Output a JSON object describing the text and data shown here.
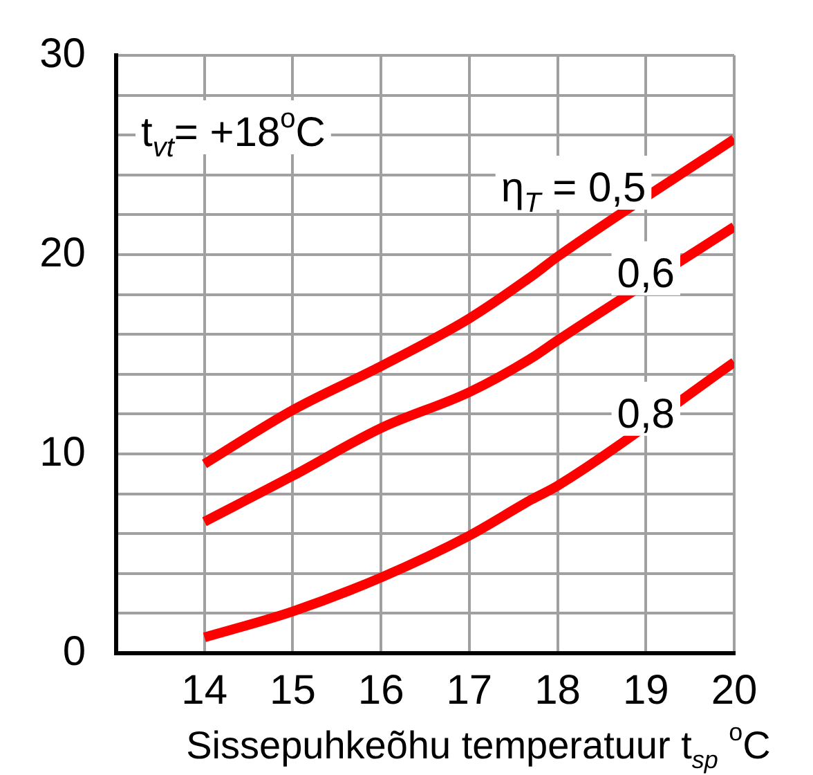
{
  "chart_data": {
    "type": "line",
    "xlabel": "Sissepuhkeõhu temperatuur t$_{sp}$ $^{o}$C",
    "x": [
      14,
      15,
      16,
      17,
      17.7,
      18,
      20
    ],
    "series": [
      {
        "name": "η$_{T}$ = 0,5",
        "color": "#ff0000",
        "values": [
          9.5,
          12.2,
          14.4,
          16.8,
          18.9,
          19.9,
          25.8
        ]
      },
      {
        "name": "0,6",
        "color": "#ff0000",
        "values": [
          6.6,
          8.9,
          11.3,
          13.1,
          14.8,
          15.7,
          21.4
        ]
      },
      {
        "name": "0,8",
        "color": "#ff0000",
        "values": [
          0.8,
          2.1,
          3.8,
          5.9,
          7.7,
          8.4,
          14.6
        ]
      }
    ],
    "xlim": [
      13,
      20
    ],
    "xticks": [
      {
        "value": 13,
        "label": null
      },
      14,
      15,
      16,
      17,
      18,
      19,
      20
    ],
    "ylim": [
      0,
      30
    ],
    "yticks": [
      0,
      {
        "value": 2,
        "label": null
      },
      {
        "value": 4,
        "label": null
      },
      {
        "value": 6,
        "label": null
      },
      {
        "value": 8,
        "label": null
      },
      10,
      {
        "value": 12,
        "label": null
      },
      {
        "value": 14,
        "label": null
      },
      {
        "value": 16,
        "label": null
      },
      {
        "value": 18,
        "label": null
      },
      20,
      {
        "value": 22,
        "label": null
      },
      {
        "value": 24,
        "label": null
      },
      {
        "value": 26,
        "label": null
      },
      {
        "value": 28,
        "label": null
      },
      30
    ],
    "grid": true,
    "legend": false,
    "marker": "none",
    "line_style": "solid",
    "annotations": [
      "t$_{vt}$= +18$^{o}$C"
    ]
  }
}
